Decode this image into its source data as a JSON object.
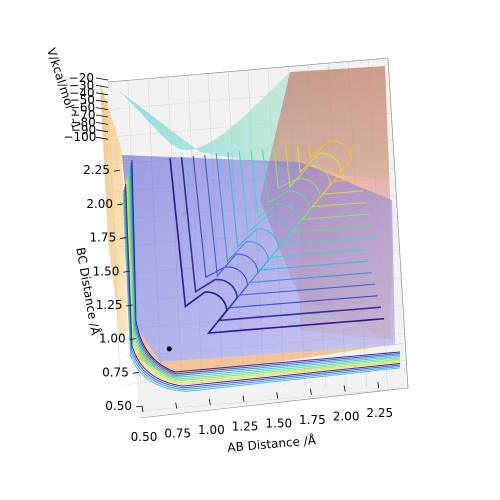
{
  "chart_data": {
    "type": "surface-3d-contour",
    "title": "",
    "xlabel": "AB Distance /Å",
    "ylabel": "BC Distance /Å",
    "zlabel": "V/kcal/mol^-1",
    "x_ticks": [
      "0.50",
      "0.75",
      "1.00",
      "1.25",
      "1.50",
      "1.75",
      "2.00",
      "2.25"
    ],
    "y_ticks": [
      "0.50",
      "0.75",
      "1.00",
      "1.25",
      "1.50",
      "1.75",
      "2.00",
      "2.25"
    ],
    "z_ticks": [
      "−20",
      "−30",
      "−40",
      "−50",
      "−60",
      "−70",
      "−80",
      "−90",
      "−100"
    ],
    "xlim": [
      0.5,
      2.4
    ],
    "ylim": [
      0.5,
      2.4
    ],
    "zlim": [
      -100,
      -20
    ],
    "grid": true,
    "marked_point": {
      "x": 0.74,
      "y": 0.9
    },
    "surface_colors": [
      "#1a0a8c",
      "#2a3fd0",
      "#3aa0e8",
      "#3de0c8",
      "#7ee85a",
      "#d8e040",
      "#ffc020",
      "#f08070",
      "#c04040"
    ]
  }
}
